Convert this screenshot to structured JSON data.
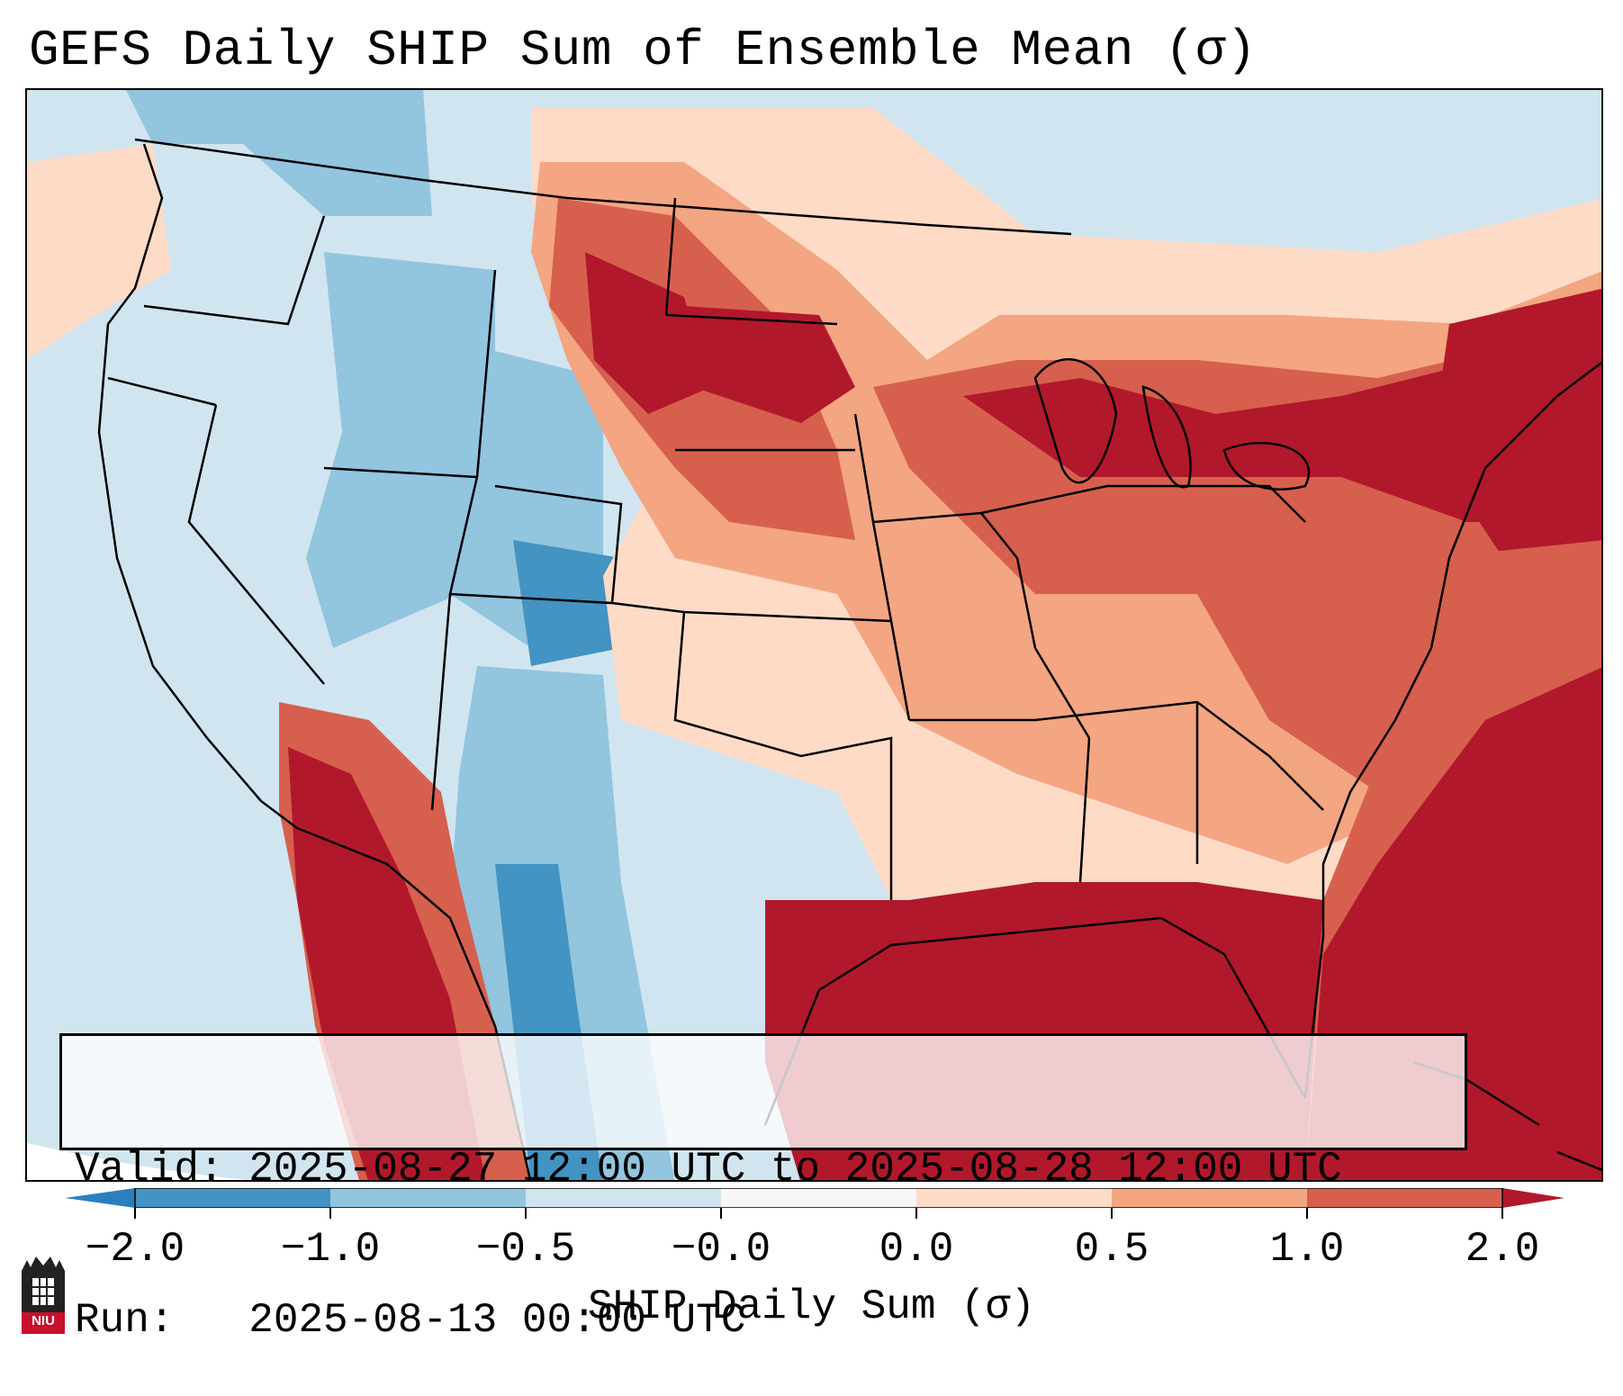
{
  "title": "GEFS Daily SHIP Sum of Ensemble Mean (σ)",
  "info": {
    "valid_line": "Valid: 2025-08-27 12:00 UTC to 2025-08-28 12:00 UTC",
    "run_line": "Run:   2025-08-13 00:00 UTC"
  },
  "colorbar": {
    "title": "SHIP Daily Sum (σ)",
    "tick_labels": [
      "−2.0",
      "−1.0",
      "−0.5",
      "−0.0",
      "0.0",
      "0.5",
      "1.0",
      "2.0"
    ],
    "colors": [
      "#2b7fbc",
      "#4393c3",
      "#92c5de",
      "#d1e5f0",
      "#f7f7f7",
      "#fddbc7",
      "#f4a582",
      "#d6604d",
      "#b2182b"
    ],
    "extend": "both"
  },
  "map_colors": {
    "neg_strong": "#4393c3",
    "neg_mid": "#92c5de",
    "neg_weak": "#d1e5f0",
    "pos_weak": "#fddbc7",
    "pos_mid": "#f4a582",
    "pos_strong": "#d6604d",
    "pos_extreme": "#b2182b"
  },
  "logo": {
    "text": "NIU"
  }
}
